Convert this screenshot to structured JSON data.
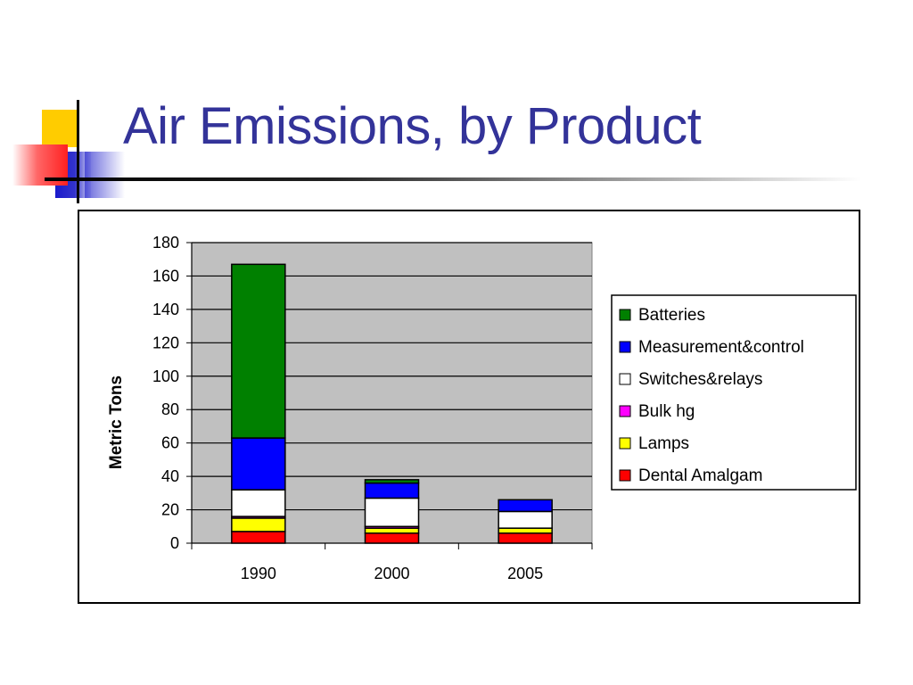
{
  "slide": {
    "title": "Air Emissions, by Product"
  },
  "colors": {
    "title": "#333399",
    "plot_bg": "#c0c0c0"
  },
  "chart_data": {
    "type": "bar",
    "stacked": true,
    "categories": [
      "1990",
      "2000",
      "2005"
    ],
    "ylabel": "Metric Tons",
    "xlabel": "",
    "ylim": [
      0,
      180
    ],
    "yticks": [
      0,
      20,
      40,
      60,
      80,
      100,
      120,
      140,
      160,
      180
    ],
    "grid": true,
    "legend_position": "right",
    "series": [
      {
        "name": "Dental Amalgam",
        "color": "#ff0000",
        "values": [
          7,
          6,
          6
        ]
      },
      {
        "name": "Lamps",
        "color": "#ffff00",
        "values": [
          8,
          3,
          3
        ]
      },
      {
        "name": "Bulk hg",
        "color": "#ff00ff",
        "values": [
          1,
          1,
          0
        ]
      },
      {
        "name": "Switches&relays",
        "color": "#ffffff",
        "values": [
          16,
          17,
          10
        ]
      },
      {
        "name": "Measurement&control",
        "color": "#0000ff",
        "values": [
          31,
          9,
          7
        ]
      },
      {
        "name": "Batteries",
        "color": "#008000",
        "values": [
          104,
          2,
          0
        ]
      }
    ],
    "legend_order": [
      "Batteries",
      "Measurement&control",
      "Switches&relays",
      "Bulk hg",
      "Lamps",
      "Dental Amalgam"
    ]
  }
}
